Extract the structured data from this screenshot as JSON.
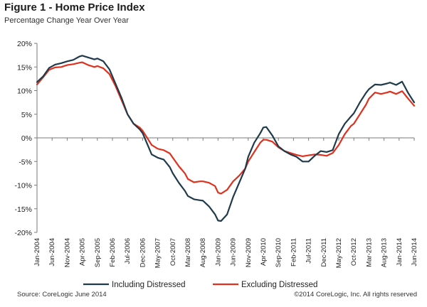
{
  "header": {
    "title": "Figure 1 - Home Price Index",
    "subtitle": "Percentage Change Year Over Year"
  },
  "footer": {
    "source": "Source: CoreLogic  June 2014",
    "copyright": "©2014 CoreLogic, Inc. All rights reserved"
  },
  "colors": {
    "including": "#1f3a4a",
    "excluding": "#e0301e",
    "axis": "#7a7a7a"
  },
  "chart_data": {
    "type": "line",
    "title": "Figure 1 - Home Price Index",
    "subtitle": "Percentage Change Year Over Year",
    "ylim": [
      -20,
      20
    ],
    "y_ticks": [
      20,
      15,
      10,
      5,
      0,
      -5,
      -10,
      -15,
      -20
    ],
    "y_tick_labels": [
      "20%",
      "15%",
      "10%",
      "5%",
      "0%",
      "-5%",
      "-10%",
      "-15%",
      "-20%"
    ],
    "x_range": [
      "Jan-2004",
      "Jun-2014"
    ],
    "x_tick_labels": [
      "Jan-2004",
      "Jun-2004",
      "Nov-2004",
      "Apr-2005",
      "Sep-2005",
      "Feb-2006",
      "Jul-2006",
      "Dec-2006",
      "May-2007",
      "Oct-2007",
      "Mar-2008",
      "Aug-2008",
      "Jan-2009",
      "Jun-2009",
      "Nov-2009",
      "Apr-2010",
      "Sep-2010",
      "Feb-2011",
      "Jul-2011",
      "Dec-2011",
      "May-2012",
      "Oct-2012",
      "Mar-2013",
      "Aug-2013",
      "Jan-2014",
      "Jun-2014"
    ],
    "grid": false,
    "legend_position": "bottom",
    "series": [
      {
        "name": "Including Distressed",
        "points": [
          [
            "Jan-2004",
            11.8
          ],
          [
            "Mar-2004",
            13.0
          ],
          [
            "May-2004",
            14.8
          ],
          [
            "Jul-2004",
            15.5
          ],
          [
            "Sep-2004",
            15.8
          ],
          [
            "Nov-2004",
            16.2
          ],
          [
            "Jan-2005",
            16.5
          ],
          [
            "Mar-2005",
            17.2
          ],
          [
            "Apr-2005",
            17.4
          ],
          [
            "Jun-2005",
            17.0
          ],
          [
            "Aug-2005",
            16.6
          ],
          [
            "Sep-2005",
            16.8
          ],
          [
            "Nov-2005",
            16.2
          ],
          [
            "Jan-2006",
            14.5
          ],
          [
            "Mar-2006",
            11.5
          ],
          [
            "May-2006",
            8.5
          ],
          [
            "Jul-2006",
            5.0
          ],
          [
            "Sep-2006",
            3.0
          ],
          [
            "Nov-2006",
            1.8
          ],
          [
            "Dec-2006",
            1.0
          ],
          [
            "Feb-2007",
            -2.0
          ],
          [
            "Mar-2007",
            -3.5
          ],
          [
            "May-2007",
            -4.2
          ],
          [
            "Jul-2007",
            -4.6
          ],
          [
            "Sep-2007",
            -6.2
          ],
          [
            "Oct-2007",
            -7.5
          ],
          [
            "Dec-2007",
            -9.5
          ],
          [
            "Feb-2008",
            -11.2
          ],
          [
            "Mar-2008",
            -12.3
          ],
          [
            "May-2008",
            -13.0
          ],
          [
            "Jul-2008",
            -13.2
          ],
          [
            "Aug-2008",
            -13.3
          ],
          [
            "Oct-2008",
            -14.5
          ],
          [
            "Dec-2008",
            -16.2
          ],
          [
            "Jan-2009",
            -17.5
          ],
          [
            "Feb-2009",
            -17.6
          ],
          [
            "Apr-2009",
            -16.2
          ],
          [
            "Jun-2009",
            -12.5
          ],
          [
            "Aug-2009",
            -9.5
          ],
          [
            "Oct-2009",
            -6.5
          ],
          [
            "Nov-2009",
            -4.0
          ],
          [
            "Jan-2010",
            -1.0
          ],
          [
            "Mar-2010",
            1.0
          ],
          [
            "Apr-2010",
            2.2
          ],
          [
            "May-2010",
            2.3
          ],
          [
            "Jul-2010",
            0.5
          ],
          [
            "Sep-2010",
            -1.8
          ],
          [
            "Nov-2010",
            -2.8
          ],
          [
            "Jan-2011",
            -3.5
          ],
          [
            "Mar-2011",
            -4.0
          ],
          [
            "May-2011",
            -5.0
          ],
          [
            "Jul-2011",
            -5.0
          ],
          [
            "Sep-2011",
            -3.8
          ],
          [
            "Nov-2011",
            -2.8
          ],
          [
            "Jan-2012",
            -3.0
          ],
          [
            "Mar-2012",
            -2.6
          ],
          [
            "May-2012",
            0.8
          ],
          [
            "Jul-2012",
            3.0
          ],
          [
            "Sep-2012",
            4.5
          ],
          [
            "Oct-2012",
            5.2
          ],
          [
            "Dec-2012",
            7.5
          ],
          [
            "Feb-2013",
            9.5
          ],
          [
            "Mar-2013",
            10.3
          ],
          [
            "May-2013",
            11.3
          ],
          [
            "Jul-2013",
            11.2
          ],
          [
            "Sep-2013",
            11.5
          ],
          [
            "Oct-2013",
            11.7
          ],
          [
            "Dec-2013",
            11.2
          ],
          [
            "Feb-2014",
            11.9
          ],
          [
            "Apr-2014",
            9.5
          ],
          [
            "Jun-2014",
            7.5
          ]
        ]
      },
      {
        "name": "Excluding Distressed",
        "points": [
          [
            "Jan-2004",
            11.3
          ],
          [
            "Mar-2004",
            12.8
          ],
          [
            "May-2004",
            14.4
          ],
          [
            "Jul-2004",
            14.9
          ],
          [
            "Sep-2004",
            15.0
          ],
          [
            "Nov-2004",
            15.4
          ],
          [
            "Jan-2005",
            15.6
          ],
          [
            "Mar-2005",
            15.9
          ],
          [
            "Apr-2005",
            16.0
          ],
          [
            "Jun-2005",
            15.4
          ],
          [
            "Aug-2005",
            15.0
          ],
          [
            "Sep-2005",
            15.2
          ],
          [
            "Nov-2005",
            14.7
          ],
          [
            "Jan-2006",
            13.5
          ],
          [
            "Mar-2006",
            11.0
          ],
          [
            "May-2006",
            8.0
          ],
          [
            "Jul-2006",
            5.0
          ],
          [
            "Sep-2006",
            3.0
          ],
          [
            "Nov-2006",
            2.2
          ],
          [
            "Dec-2006",
            1.5
          ],
          [
            "Feb-2007",
            -0.5
          ],
          [
            "Mar-2007",
            -1.5
          ],
          [
            "May-2007",
            -2.3
          ],
          [
            "Jul-2007",
            -2.6
          ],
          [
            "Sep-2007",
            -3.3
          ],
          [
            "Oct-2007",
            -4.2
          ],
          [
            "Dec-2007",
            -6.0
          ],
          [
            "Feb-2008",
            -7.5
          ],
          [
            "Mar-2008",
            -8.7
          ],
          [
            "May-2008",
            -9.4
          ],
          [
            "Jul-2008",
            -9.2
          ],
          [
            "Aug-2008",
            -9.2
          ],
          [
            "Oct-2008",
            -9.5
          ],
          [
            "Dec-2008",
            -10.2
          ],
          [
            "Jan-2009",
            -11.6
          ],
          [
            "Feb-2009",
            -11.8
          ],
          [
            "Apr-2009",
            -11.0
          ],
          [
            "Jun-2009",
            -9.2
          ],
          [
            "Aug-2009",
            -8.0
          ],
          [
            "Oct-2009",
            -6.5
          ],
          [
            "Nov-2009",
            -5.0
          ],
          [
            "Jan-2010",
            -3.0
          ],
          [
            "Mar-2010",
            -1.0
          ],
          [
            "Apr-2010",
            -0.4
          ],
          [
            "May-2010",
            -0.4
          ],
          [
            "Jul-2010",
            -0.8
          ],
          [
            "Sep-2010",
            -2.0
          ],
          [
            "Nov-2010",
            -2.8
          ],
          [
            "Jan-2011",
            -3.2
          ],
          [
            "Mar-2011",
            -3.6
          ],
          [
            "May-2011",
            -3.9
          ],
          [
            "Jul-2011",
            -3.7
          ],
          [
            "Sep-2011",
            -3.5
          ],
          [
            "Nov-2011",
            -3.6
          ],
          [
            "Jan-2012",
            -3.8
          ],
          [
            "Mar-2012",
            -3.2
          ],
          [
            "May-2012",
            -1.5
          ],
          [
            "Jul-2012",
            0.8
          ],
          [
            "Sep-2012",
            2.5
          ],
          [
            "Oct-2012",
            3.0
          ],
          [
            "Dec-2012",
            5.0
          ],
          [
            "Feb-2013",
            7.0
          ],
          [
            "Mar-2013",
            8.3
          ],
          [
            "May-2013",
            9.6
          ],
          [
            "Jul-2013",
            9.3
          ],
          [
            "Sep-2013",
            9.6
          ],
          [
            "Oct-2013",
            9.8
          ],
          [
            "Dec-2013",
            9.3
          ],
          [
            "Feb-2014",
            9.9
          ],
          [
            "Apr-2014",
            8.3
          ],
          [
            "Jun-2014",
            6.8
          ]
        ]
      }
    ]
  }
}
